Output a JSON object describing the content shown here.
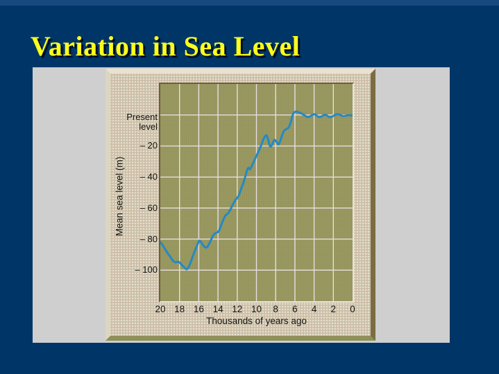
{
  "slide": {
    "title": "Variation in Sea Level",
    "title_color": "#ffff1e",
    "background_color": "#003667",
    "top_strip_color": "#17497f"
  },
  "figure": {
    "panel_color": "#cfcfcf",
    "frame_color": "#cdc4aa",
    "plot_bg_color": "#9a9a62",
    "gridline_color": "#e8dee0",
    "curve_color": "#2489c5",
    "y_axis": {
      "title": "Mean sea level (m)",
      "top_label_lines": [
        "Present",
        "level"
      ],
      "ticks": [
        {
          "value": -20,
          "label": "– 20"
        },
        {
          "value": -40,
          "label": "– 40"
        },
        {
          "value": -60,
          "label": "– 60"
        },
        {
          "value": -80,
          "label": "– 80"
        },
        {
          "value": -100,
          "label": "– 100"
        }
      ]
    },
    "x_axis": {
      "title": "Thousands of years ago",
      "ticks": [
        {
          "value": 20,
          "label": "20"
        },
        {
          "value": 18,
          "label": "18"
        },
        {
          "value": 16,
          "label": "16"
        },
        {
          "value": 14,
          "label": "14"
        },
        {
          "value": 12,
          "label": "12"
        },
        {
          "value": 10,
          "label": "10"
        },
        {
          "value": 8,
          "label": "8"
        },
        {
          "value": 6,
          "label": "6"
        },
        {
          "value": 4,
          "label": "4"
        },
        {
          "value": 2,
          "label": "2"
        },
        {
          "value": 0,
          "label": "0"
        }
      ]
    }
  },
  "chart_data": {
    "type": "line",
    "title": "Variation in Sea Level",
    "xlabel": "Thousands of years ago",
    "ylabel": "Mean sea level (m)",
    "xlim": [
      20,
      0
    ],
    "ylim": [
      -120,
      20
    ],
    "grid": true,
    "x_gridlines": [
      18,
      16,
      14,
      12,
      10,
      8,
      6,
      4,
      2
    ],
    "y_gridlines": [
      0,
      -20,
      -40,
      -60,
      -80,
      -100
    ],
    "present_level_value": 0,
    "series": [
      {
        "name": "Mean sea level",
        "x": [
          20,
          19.8,
          19.6,
          19.4,
          19.2,
          19,
          18.8,
          18.6,
          18.4,
          18.2,
          18,
          17.8,
          17.6,
          17.4,
          17.25,
          17.1,
          16.9,
          16.7,
          16.5,
          16.3,
          16.1,
          15.95,
          15.8,
          15.6,
          15.4,
          15.25,
          15.1,
          14.95,
          14.8,
          14.65,
          14.5,
          14.35,
          14.2,
          14,
          13.85,
          13.7,
          13.55,
          13.4,
          13.3,
          13.2,
          13.05,
          12.9,
          12.75,
          12.6,
          12.45,
          12.3,
          12.15,
          12,
          11.85,
          11.7,
          11.55,
          11.4,
          11.25,
          11.1,
          11,
          10.9,
          10.8,
          10.7,
          10.6,
          10.5,
          10.35,
          10.2,
          10.05,
          9.9,
          9.75,
          9.6,
          9.45,
          9.3,
          9.15,
          9,
          8.9,
          8.8,
          8.7,
          8.6,
          8.5,
          8.4,
          8.3,
          8.2,
          8.1,
          8,
          7.9,
          7.8,
          7.7,
          7.6,
          7.5,
          7.4,
          7.3,
          7.2,
          7.1,
          7,
          6.85,
          6.7,
          6.6,
          6.5,
          6.4,
          6.3,
          6.2,
          6.1,
          6,
          5.85,
          5.7,
          5.55,
          5.4,
          5.25,
          5.1,
          4.95,
          4.8,
          4.65,
          4.5,
          4.35,
          4.2,
          4.05,
          3.95,
          3.8,
          3.65,
          3.5,
          3.35,
          3.2,
          3.05,
          2.9,
          2.75,
          2.6,
          2.45,
          2.3,
          2.15,
          2,
          1.85,
          1.7,
          1.55,
          1.4,
          1.25,
          1.1,
          0.95,
          0.8,
          0.65,
          0.5,
          0.35,
          0.2,
          0
        ],
        "y": [
          -82,
          -83.5,
          -85.5,
          -87.5,
          -89.5,
          -91,
          -93,
          -94.5,
          -95,
          -94.5,
          -95,
          -96.5,
          -97.5,
          -99,
          -99.5,
          -98.5,
          -96,
          -92.5,
          -89,
          -86,
          -83,
          -81,
          -81.5,
          -83.5,
          -85,
          -85.5,
          -85,
          -83.5,
          -81.5,
          -79.5,
          -77.5,
          -76.5,
          -76,
          -75.5,
          -74,
          -71.5,
          -69,
          -67,
          -65.5,
          -64.5,
          -64,
          -63,
          -61.5,
          -59.5,
          -57.5,
          -56,
          -54.5,
          -53.5,
          -52,
          -49.5,
          -47,
          -44.5,
          -41.5,
          -38.5,
          -36,
          -34.5,
          -34,
          -35,
          -34.5,
          -33,
          -31,
          -29,
          -27,
          -25,
          -23,
          -21,
          -18.5,
          -16,
          -14,
          -13,
          -13.5,
          -15.5,
          -18,
          -20,
          -20.5,
          -19.5,
          -18,
          -16.5,
          -16,
          -16.5,
          -17.5,
          -18.5,
          -19,
          -18,
          -16.5,
          -14.5,
          -12.5,
          -11,
          -10,
          -9.5,
          -9,
          -8.5,
          -7.5,
          -6,
          -4,
          -1.5,
          0.5,
          1.5,
          2,
          2.2,
          2,
          1.6,
          1.2,
          0.7,
          0.2,
          -0.4,
          -1,
          -1.3,
          -1.1,
          -0.6,
          0,
          0.5,
          0.5,
          0,
          -0.8,
          -1.3,
          -1.3,
          -0.8,
          -0.2,
          0.2,
          0,
          -0.6,
          -1.2,
          -1.4,
          -1.1,
          -0.6,
          -0.1,
          0.3,
          0.5,
          0.3,
          -0.1,
          -0.5,
          -0.7,
          -0.6,
          -0.4,
          -0.2,
          -0.1,
          -0.2,
          -0.3
        ]
      }
    ]
  }
}
